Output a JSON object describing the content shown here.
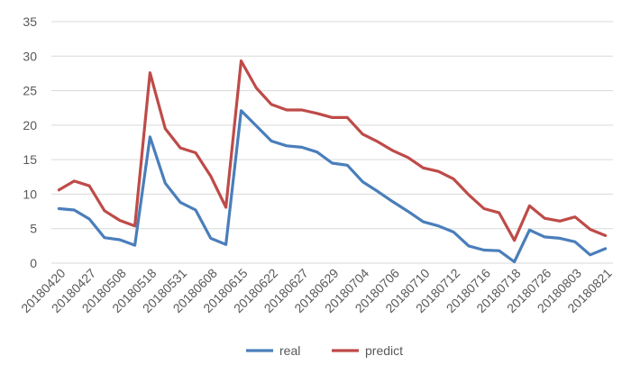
{
  "chart_data": {
    "type": "line",
    "title": "",
    "xlabel": "",
    "ylabel": "",
    "ylim": [
      0,
      35
    ],
    "yticks": [
      0,
      5,
      10,
      15,
      20,
      25,
      30,
      35
    ],
    "grid": "horizontal",
    "legend_position": "bottom",
    "x_tick_labels": [
      "20180420",
      "20180427",
      "20180508",
      "20180518",
      "20180531",
      "20180608",
      "20180615",
      "20180622",
      "20180627",
      "20180629",
      "20180704",
      "20180706",
      "20180710",
      "20180712",
      "20180716",
      "20180718",
      "20180726",
      "20180803",
      "20180821"
    ],
    "series": [
      {
        "name": "real",
        "color": "#4a7ebb",
        "values": [
          7.9,
          7.7,
          6.4,
          3.7,
          3.4,
          2.6,
          18.3,
          11.6,
          8.8,
          7.7,
          3.6,
          2.7,
          22.1,
          19.9,
          17.7,
          17.0,
          16.8,
          16.1,
          14.5,
          14.2,
          11.8,
          10.4,
          8.9,
          7.5,
          6.0,
          5.4,
          4.5,
          2.5,
          1.9,
          1.8,
          0.2,
          4.8,
          3.8,
          3.6,
          3.1,
          1.2,
          2.1
        ]
      },
      {
        "name": "predict",
        "color": "#be4b48",
        "values": [
          10.6,
          11.9,
          11.2,
          7.6,
          6.2,
          5.4,
          27.6,
          19.5,
          16.7,
          16.0,
          12.6,
          8.1,
          29.3,
          25.4,
          23.0,
          22.2,
          22.2,
          21.7,
          21.1,
          21.1,
          18.7,
          17.6,
          16.3,
          15.3,
          13.8,
          13.3,
          12.2,
          9.9,
          7.9,
          7.3,
          3.3,
          8.3,
          6.5,
          6.1,
          6.7,
          4.9,
          4.0
        ]
      }
    ]
  }
}
